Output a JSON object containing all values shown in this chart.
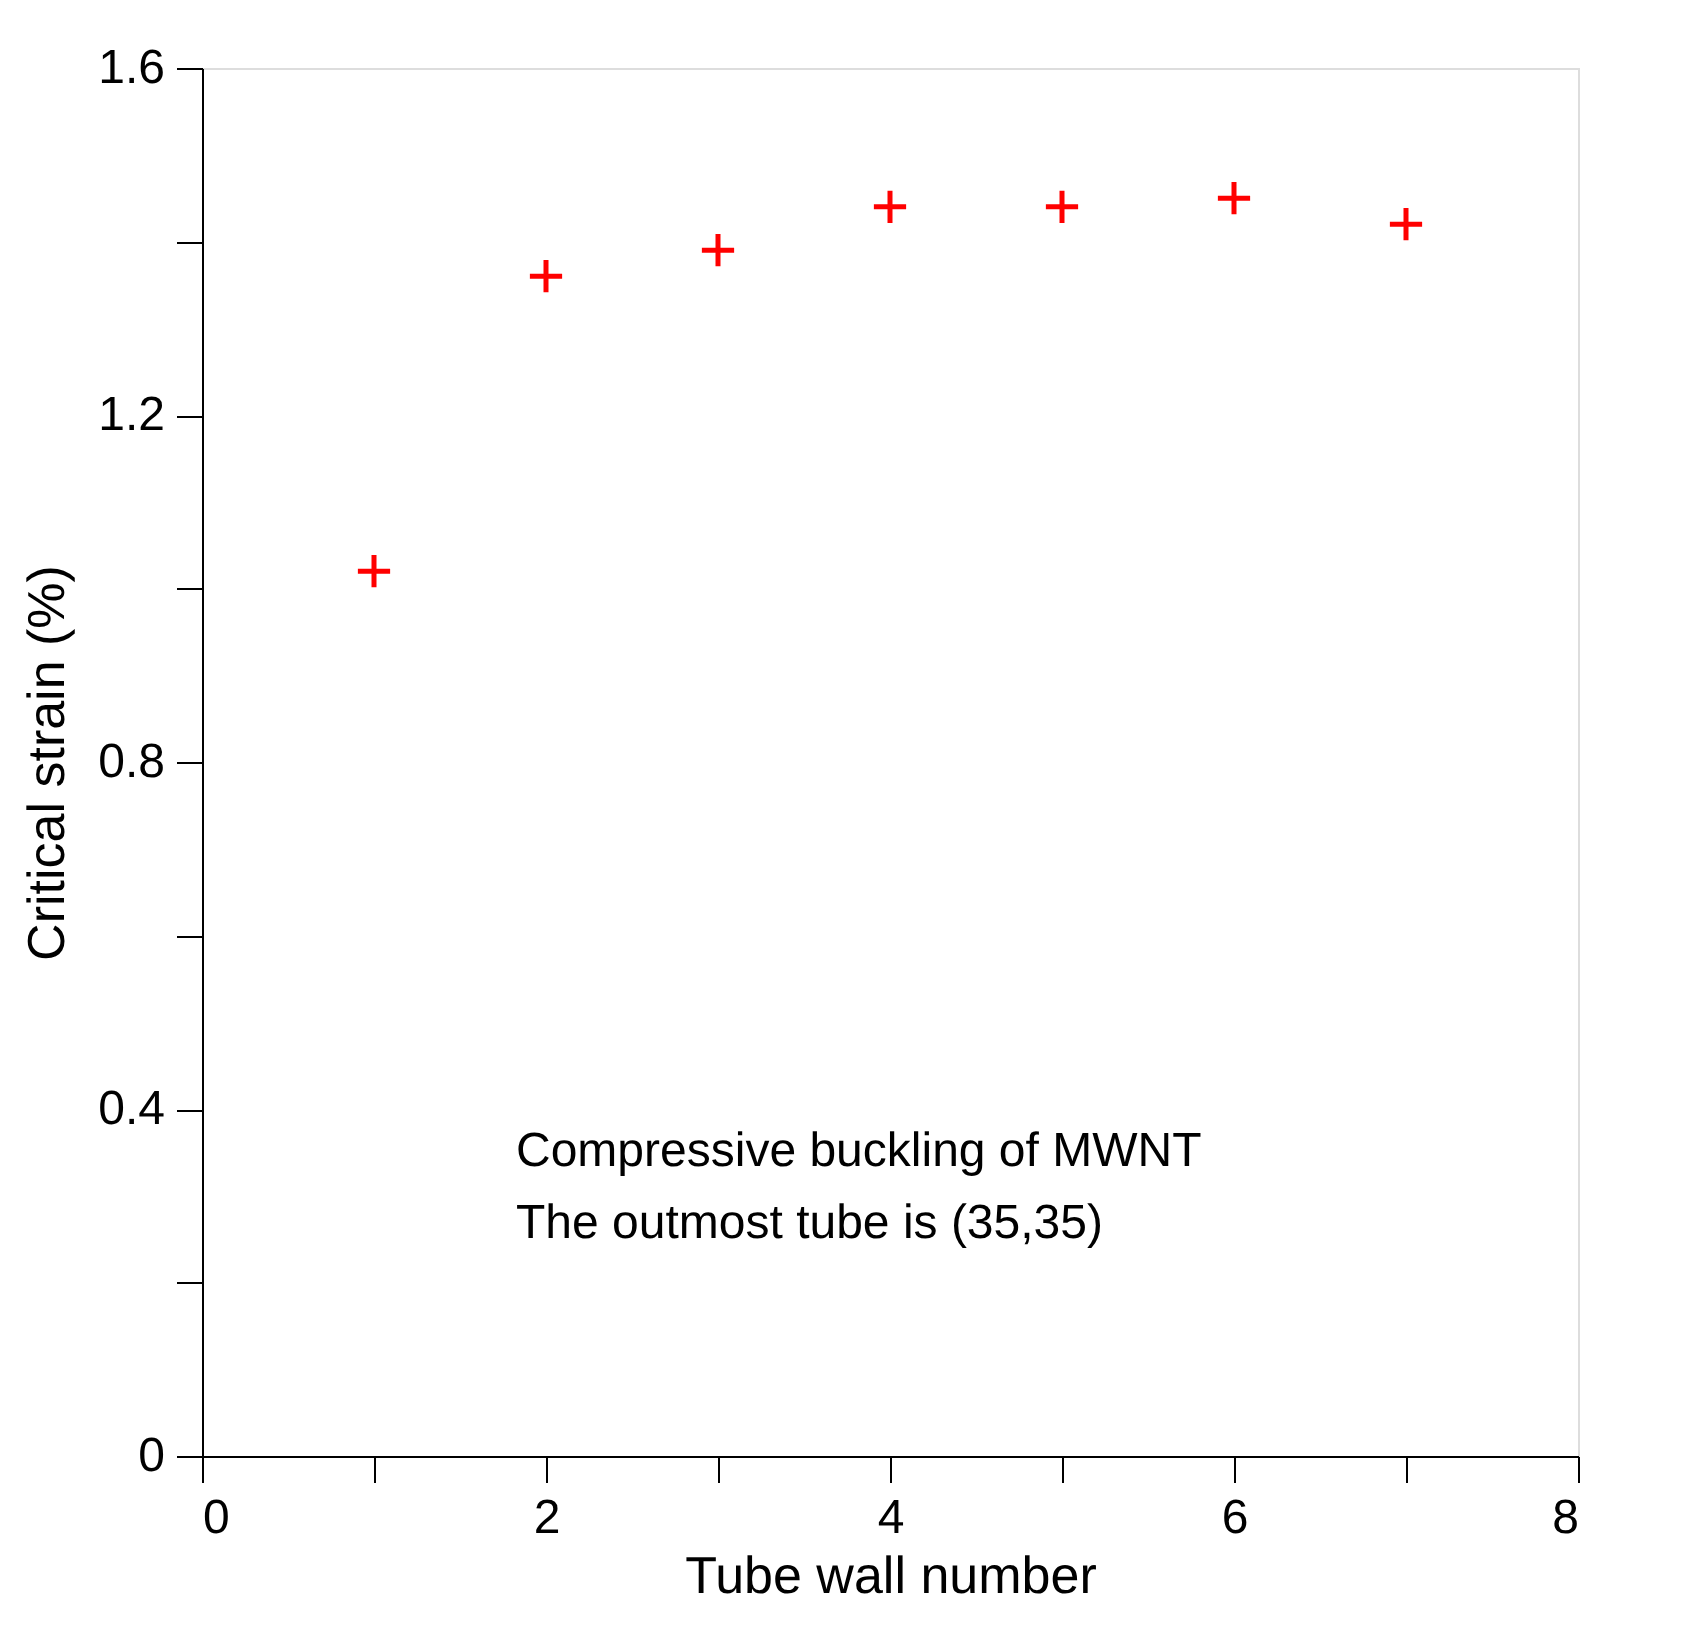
{
  "chart_data": {
    "type": "scatter",
    "xlabel": "Tube wall number",
    "ylabel": "Critical strain (%)",
    "x": [
      1,
      2,
      3,
      4,
      5,
      6,
      7
    ],
    "series": [
      {
        "color": "#ff0000",
        "values": [
          1.02,
          1.36,
          1.39,
          1.44,
          1.44,
          1.45,
          1.42
        ]
      }
    ],
    "xlim": [
      0,
      8
    ],
    "xticks": [
      0,
      {
        "value": 1,
        "label": null
      },
      2,
      {
        "value": 3,
        "label": null
      },
      4,
      {
        "value": 5,
        "label": null
      },
      6,
      {
        "value": 7,
        "label": null
      },
      8
    ],
    "ylim": [
      0,
      1.6
    ],
    "yticks": [
      0,
      {
        "value": 0.2,
        "label": null
      },
      0.4,
      {
        "value": 0.6,
        "label": null
      },
      0.8,
      {
        "value": 1.0,
        "label": null
      },
      1.2,
      {
        "value": 1.4,
        "label": null
      },
      1.6
    ],
    "marker": "cross",
    "grid": false,
    "legend": false,
    "annotations": [
      "Compressive buckling of MWNT",
      "The outmost tube is (35,35)"
    ]
  }
}
